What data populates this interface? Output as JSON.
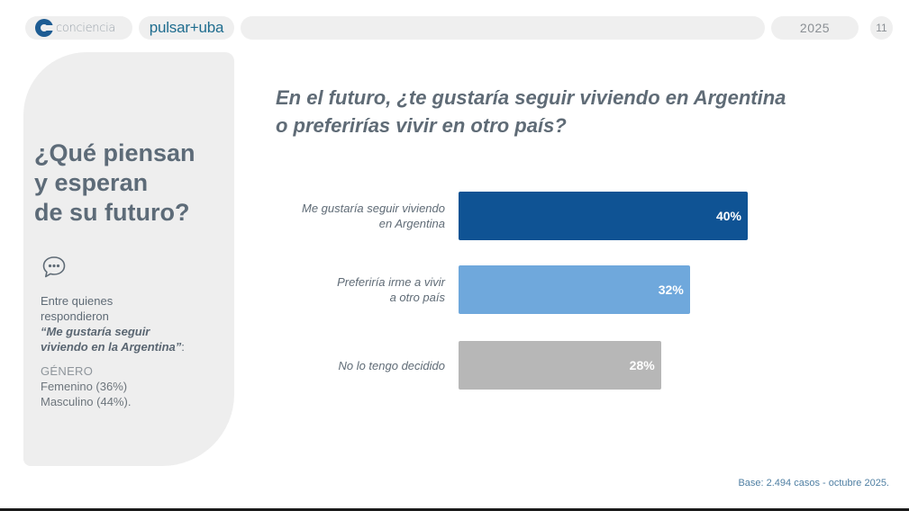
{
  "header": {
    "brand_primary": "conciencia",
    "brand_secondary": "pulsar+uba",
    "year": "2025",
    "page_number": "11",
    "colors": {
      "conciencia_logo": "#1d5c93",
      "pulsar_text": "#1f6d8f",
      "pill_bg": "#efefef"
    }
  },
  "sidebar": {
    "title_lines": [
      "¿Qué piensan",
      "y esperan",
      "de su futuro?"
    ],
    "icon": "speech-bubble-icon",
    "intro_lines": [
      "Entre quienes",
      "respondieron"
    ],
    "quote_lines": [
      "“Me gustaría seguir",
      "viviendo en la Argentina”"
    ],
    "quote_suffix": ":",
    "gender_heading": "GÉNERO",
    "gender_items": [
      "Femenino (36%)",
      "Masculino (44%)."
    ]
  },
  "question_lines": [
    "En el futuro, ¿te gustaría seguir viviendo en Argentina",
    "o preferirías vivir en otro país?"
  ],
  "chart_data": {
    "type": "bar",
    "orientation": "horizontal",
    "title": "En el futuro, ¿te gustaría seguir viviendo en Argentina o preferirías vivir en otro país?",
    "xlabel": "",
    "ylabel": "",
    "categories": [
      [
        "Me gustaría seguir viviendo",
        "en Argentina"
      ],
      [
        "Preferiría irme a vivir",
        "a otro país"
      ],
      [
        "No lo tengo decidido"
      ]
    ],
    "values": [
      40,
      32,
      28
    ],
    "value_labels": [
      "40%",
      "32%",
      "28%"
    ],
    "colors": [
      "#0f5394",
      "#6fa8dc",
      "#b7b7b7"
    ],
    "xlim": [
      0,
      40
    ],
    "grid": false,
    "legend": "none"
  },
  "footnote": "Base: 2.494 casos - octubre 2025."
}
